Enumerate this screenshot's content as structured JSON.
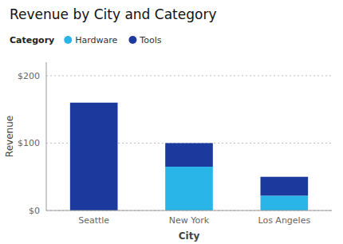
{
  "chart_data": {
    "type": "bar",
    "stacked": true,
    "title": "Revenue by City and Category",
    "xlabel": "City",
    "ylabel": "Revenue",
    "categories": [
      "Seattle",
      "New York",
      "Los Angeles"
    ],
    "series": [
      {
        "name": "Hardware",
        "color": "#29b5e8",
        "values": [
          0,
          65,
          22
        ]
      },
      {
        "name": "Tools",
        "color": "#1c3a9e",
        "values": [
          160,
          35,
          28
        ]
      }
    ],
    "ylim": [
      0,
      220
    ],
    "yticks": [
      {
        "value": 0,
        "label": "$0"
      },
      {
        "value": 100,
        "label": "$100"
      },
      {
        "value": 200,
        "label": "$200"
      }
    ],
    "grid": true,
    "legend": "upper left",
    "legend_title": "Category"
  }
}
